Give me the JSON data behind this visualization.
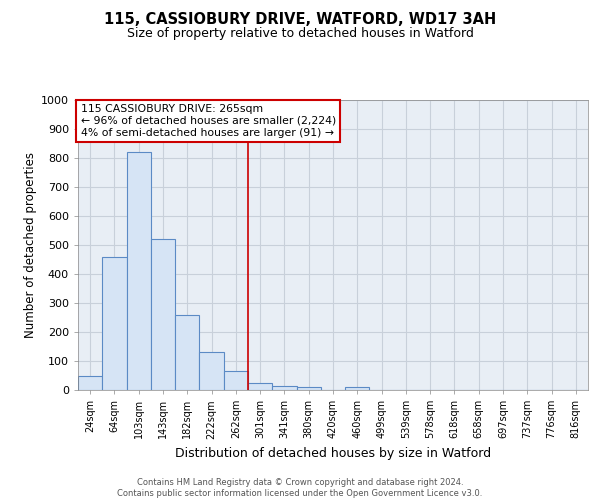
{
  "title": "115, CASSIOBURY DRIVE, WATFORD, WD17 3AH",
  "subtitle": "Size of property relative to detached houses in Watford",
  "xlabel": "Distribution of detached houses by size in Watford",
  "ylabel": "Number of detached properties",
  "categories": [
    "24sqm",
    "64sqm",
    "103sqm",
    "143sqm",
    "182sqm",
    "222sqm",
    "262sqm",
    "301sqm",
    "341sqm",
    "380sqm",
    "420sqm",
    "460sqm",
    "499sqm",
    "539sqm",
    "578sqm",
    "618sqm",
    "658sqm",
    "697sqm",
    "737sqm",
    "776sqm",
    "816sqm"
  ],
  "bar_values": [
    50,
    460,
    820,
    520,
    260,
    130,
    65,
    25,
    15,
    10,
    0,
    10,
    0,
    0,
    0,
    0,
    0,
    0,
    0,
    0,
    0
  ],
  "bar_color": "#d6e4f5",
  "bar_edgecolor": "#5b8ac5",
  "bar_linewidth": 0.8,
  "vline_position": 6.5,
  "vline_color": "#cc0000",
  "vline_linewidth": 1.2,
  "annotation_text": "115 CASSIOBURY DRIVE: 265sqm\n← 96% of detached houses are smaller (2,224)\n4% of semi-detached houses are larger (91) →",
  "annotation_box_color": "#cc0000",
  "annotation_text_color": "#000000",
  "ylim": [
    0,
    1000
  ],
  "yticks": [
    0,
    100,
    200,
    300,
    400,
    500,
    600,
    700,
    800,
    900,
    1000
  ],
  "footnote": "Contains HM Land Registry data © Crown copyright and database right 2024.\nContains public sector information licensed under the Open Government Licence v3.0.",
  "background_color": "#ffffff",
  "grid_color": "#c8d0da",
  "plot_bg_color": "#e8eef5"
}
